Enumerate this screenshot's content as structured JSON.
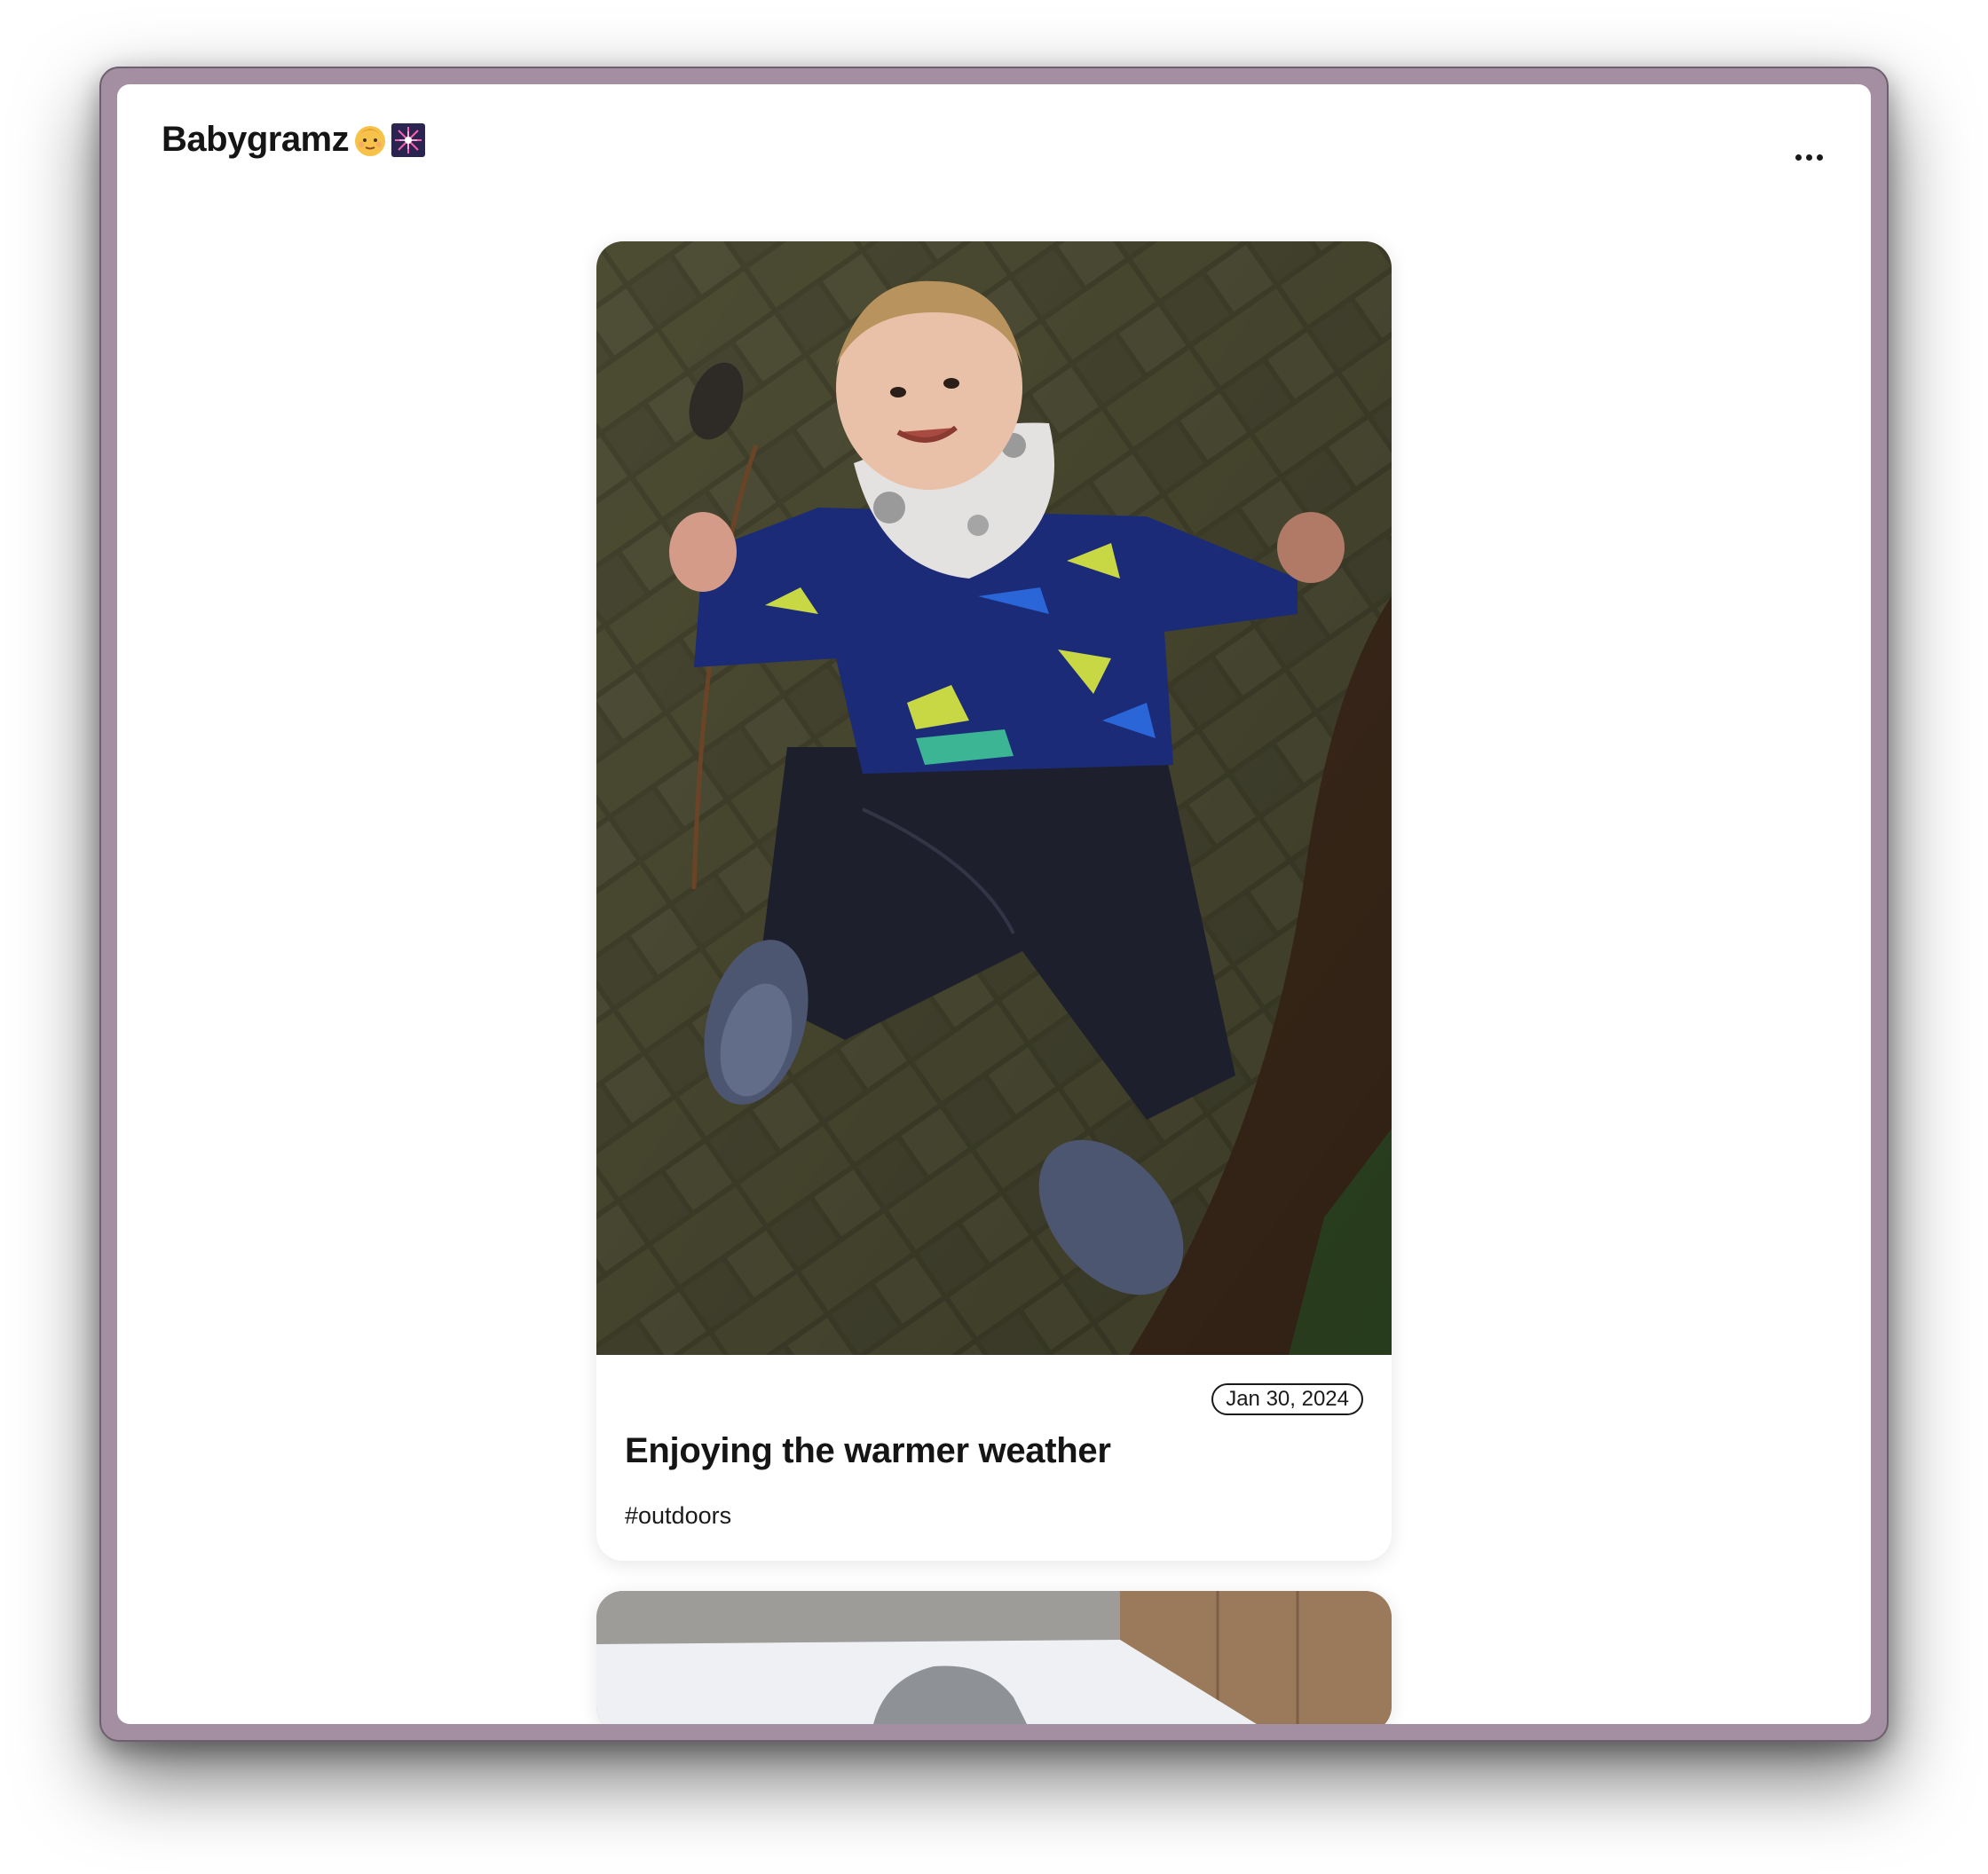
{
  "app": {
    "title": "Babygramz",
    "title_emojis": [
      "baby-face",
      "fireworks-sparkler"
    ]
  },
  "header": {
    "more_menu_icon": "ellipsis-horizontal-icon"
  },
  "posts": [
    {
      "date": "Jan 30, 2024",
      "title": "Enjoying the warmer weather",
      "tag": "#outdoors",
      "photo": "toddler-lying-on-brick-path"
    },
    {
      "photo": "bed-with-gray-plush-toy"
    }
  ],
  "colors": {
    "window_frame": "#a48ea1",
    "background": "#ffffff",
    "text": "#151515"
  }
}
